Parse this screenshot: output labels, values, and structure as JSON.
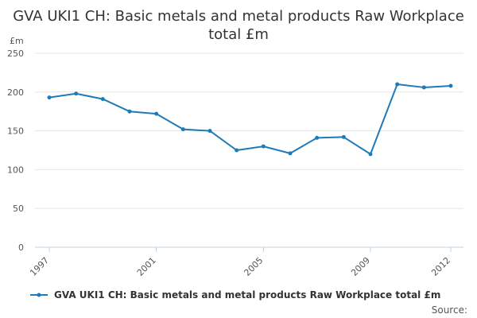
{
  "title": "GVA UKI1 CH: Basic metals and metal products Raw Workplace total £m",
  "source_label": "Source:",
  "colors": {
    "series": "#1f7ab8",
    "grid": "#e6e6e6",
    "axis": "#c0d0e0"
  },
  "chart_data": {
    "type": "line",
    "title": "GVA UKI1 CH: Basic metals and metal products Raw Workplace total £m",
    "ylabel": "£m",
    "xlabel": "",
    "ylim": [
      0,
      250
    ],
    "yticks": [
      0,
      50,
      100,
      150,
      200,
      250
    ],
    "xtick_labels": [
      "1997",
      "2001",
      "2005",
      "2009",
      "2012"
    ],
    "grid": true,
    "legend_position": "bottom",
    "x": [
      "1997",
      "1998",
      "1999",
      "2000",
      "2001",
      "2002",
      "2003",
      "2004",
      "2005",
      "2006",
      "2007",
      "2008",
      "2009",
      "2010",
      "2011",
      "2012"
    ],
    "series": [
      {
        "name": "GVA UKI1 CH: Basic metals and metal products Raw Workplace total £m",
        "values": [
          193,
          198,
          191,
          175,
          172,
          152,
          150,
          125,
          130,
          121,
          141,
          142,
          120,
          210,
          206,
          208
        ]
      }
    ]
  }
}
